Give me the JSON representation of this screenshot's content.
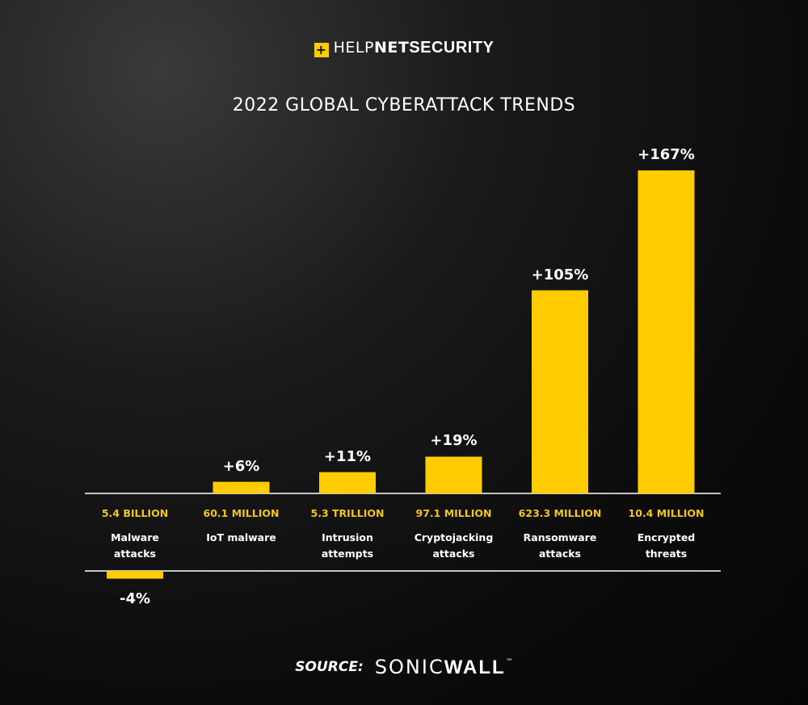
{
  "logo": [
    "HELP",
    "NET",
    "SECURITY"
  ],
  "source": [
    "SOURCE:",
    "SONIC",
    "WALL",
    "™"
  ],
  "chart_data": {
    "type": "bar",
    "title": "2022 GLOBAL CYBERATTACK TRENDS",
    "categories": [
      "Malware attacks",
      "IoT malware",
      "Intrusion attempts",
      "Cryptojacking attacks",
      "Ransomware attacks",
      "Encrypted threats"
    ],
    "volumes": [
      "5.4 BILLION",
      "60.1 MILLION",
      "5.3 TRILLION",
      "97.1 MILLION",
      "623.3 MILLION",
      "10.4 MILLION"
    ],
    "values": [
      -4,
      6,
      11,
      19,
      105,
      167
    ],
    "value_labels": [
      "-4%",
      "+6%",
      "+11%",
      "+19%",
      "+105%",
      "+167%"
    ],
    "color": "#ffcc00"
  }
}
